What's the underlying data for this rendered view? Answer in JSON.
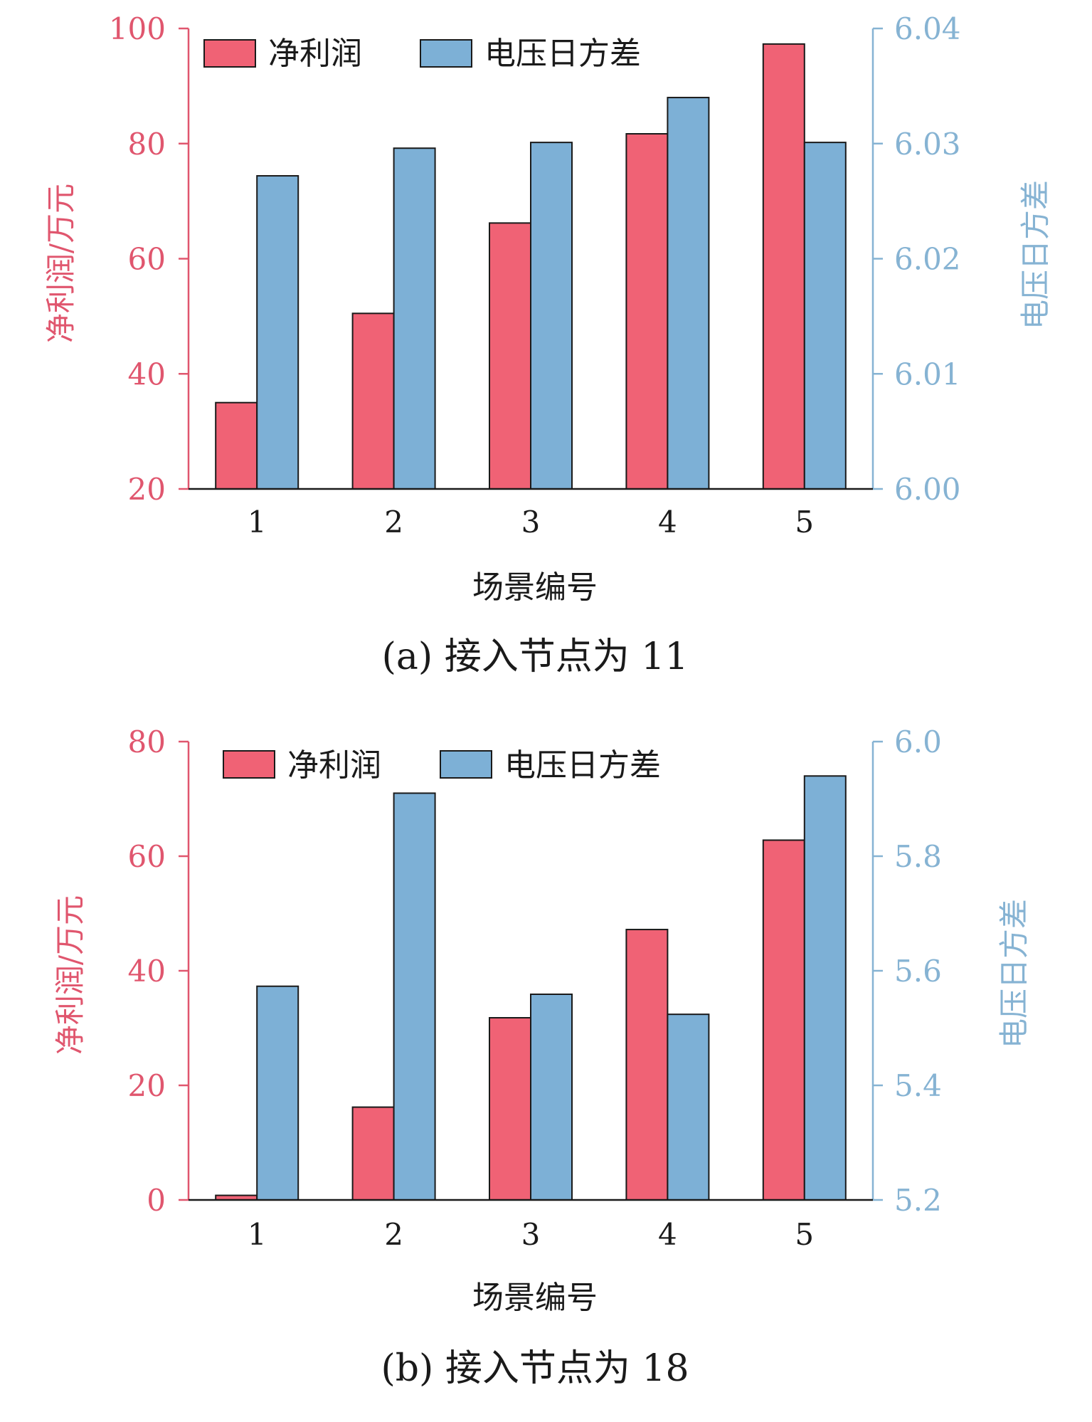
{
  "colors": {
    "profit": "#F06275",
    "variance": "#7DB0D6",
    "axis_left": "#E0566E",
    "axis_right": "#86B3D3",
    "frame": "#1a1a1a"
  },
  "chart_data": [
    {
      "type": "bar",
      "caption": "(a) 接入节点为 11",
      "xlabel": "场景编号",
      "ylabel_left": "净利润/万元",
      "ylabel_right": "电压日方差",
      "categories": [
        "1",
        "2",
        "3",
        "4",
        "5"
      ],
      "legend": {
        "placement": "top-left"
      },
      "left_axis": {
        "ylim": [
          20,
          100
        ],
        "ticks": [
          "20",
          "40",
          "60",
          "80",
          "100"
        ]
      },
      "right_axis": {
        "ylim": [
          6.0,
          6.04
        ],
        "ticks": [
          "6.00",
          "6.01",
          "6.02",
          "6.03",
          "6.04"
        ]
      },
      "series": [
        {
          "name": "净利润",
          "axis": "left",
          "values": [
            35,
            50.5,
            66.2,
            81.7,
            97.3
          ]
        },
        {
          "name": "电压日方差",
          "axis": "right",
          "values": [
            6.0272,
            6.0296,
            6.0301,
            6.034,
            6.0301
          ]
        }
      ]
    },
    {
      "type": "bar",
      "caption": "(b) 接入节点为 18",
      "xlabel": "场景编号",
      "ylabel_left": "净利润/万元",
      "ylabel_right": "电压日方差",
      "categories": [
        "1",
        "2",
        "3",
        "4",
        "5"
      ],
      "legend": {
        "placement": "top-left"
      },
      "left_axis": {
        "ylim": [
          0,
          80
        ],
        "ticks": [
          "0",
          "20",
          "40",
          "60",
          "80"
        ]
      },
      "right_axis": {
        "ylim": [
          5.2,
          6.0
        ],
        "ticks": [
          "5.2",
          "5.4",
          "5.6",
          "5.8",
          "6.0"
        ]
      },
      "series": [
        {
          "name": "净利润",
          "axis": "left",
          "values": [
            0.8,
            16.2,
            31.8,
            47.2,
            62.8
          ]
        },
        {
          "name": "电压日方差",
          "axis": "right",
          "values": [
            5.573,
            5.91,
            5.559,
            5.524,
            5.94
          ]
        }
      ]
    }
  ]
}
